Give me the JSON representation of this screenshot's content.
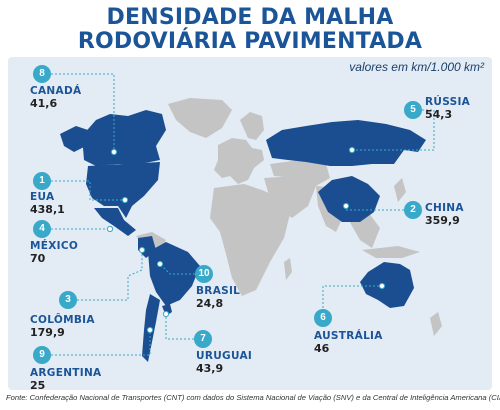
{
  "title_line1": "DENSIDADE DA MALHA",
  "title_line2": "RODOVIÁRIA PAVIMENTADA",
  "units": "valores em km/1.000 km²",
  "source": "Fonte: Confederação Nacional de Transportes (CNT) com dados do Sistema Nacional de Viação (SNV) e da Central de Inteligência Americana (CIA).",
  "colors": {
    "highlight": "#1b4e91",
    "land": "#c4c4c4",
    "badge": "#38a9c8",
    "title": "#1b5598"
  },
  "countries": [
    {
      "rank": "1",
      "name": "EUA",
      "value": "438,1"
    },
    {
      "rank": "2",
      "name": "CHINA",
      "value": "359,9"
    },
    {
      "rank": "3",
      "name": "COLÔMBIA",
      "value": "179,9"
    },
    {
      "rank": "4",
      "name": "MÉXICO",
      "value": "70"
    },
    {
      "rank": "5",
      "name": "RÚSSIA",
      "value": "54,3"
    },
    {
      "rank": "6",
      "name": "AUSTRÁLIA",
      "value": "46"
    },
    {
      "rank": "7",
      "name": "URUGUAI",
      "value": "43,9"
    },
    {
      "rank": "8",
      "name": "CANADÁ",
      "value": "41,6"
    },
    {
      "rank": "9",
      "name": "ARGENTINA",
      "value": "25"
    },
    {
      "rank": "10",
      "name": "BRASIL",
      "value": "24,8"
    }
  ]
}
